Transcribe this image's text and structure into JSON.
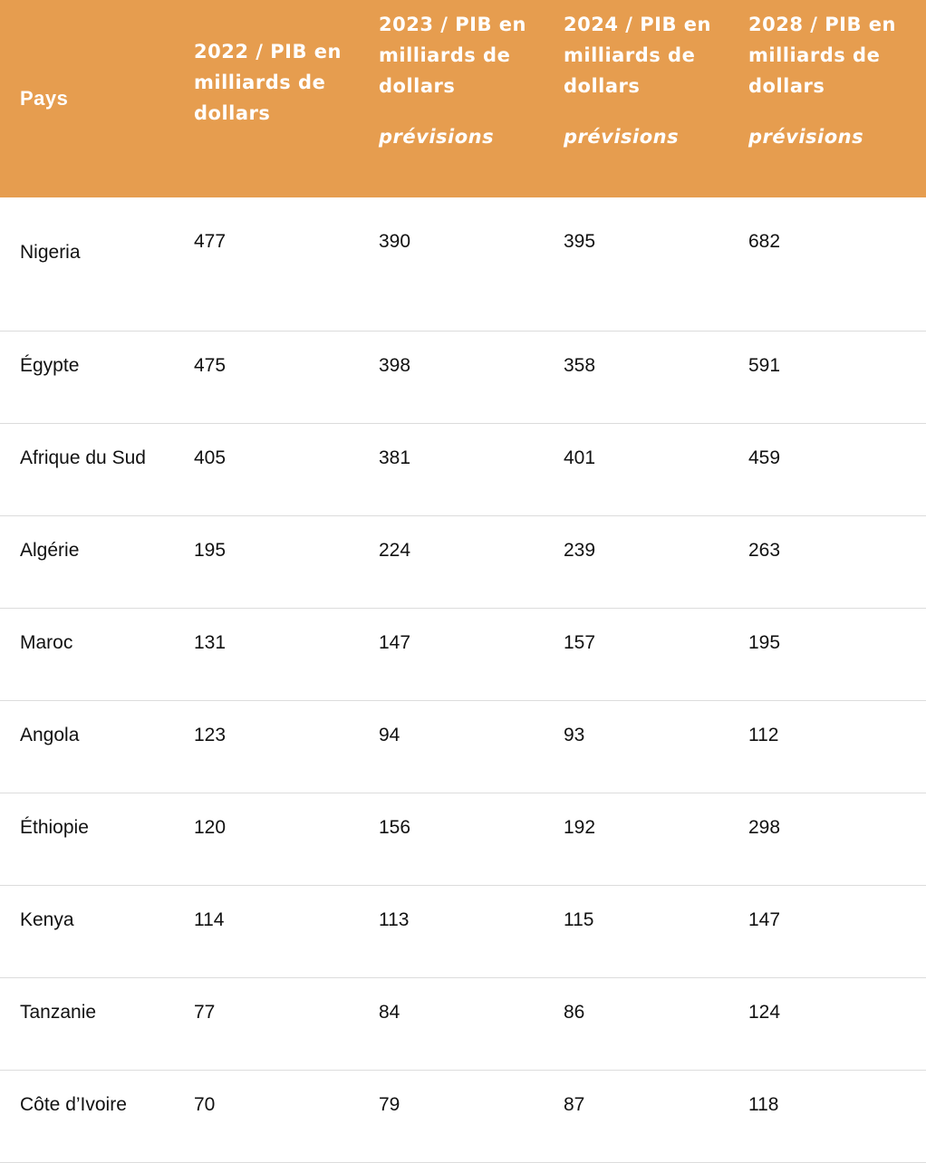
{
  "table": {
    "headers": {
      "country": "Pays",
      "y2022": {
        "line": "2022 / PIB en milliards de dollars"
      },
      "y2023": {
        "line": "2023 / PIB en milliards de dollars",
        "note": "prévisions"
      },
      "y2024": {
        "line": "2024 / PIB en milliards de dollars",
        "note": "prévisions"
      },
      "y2028": {
        "line": "2028 / PIB en milliards de dollars",
        "note": "prévisions"
      }
    },
    "rows": [
      {
        "country": "Nigeria",
        "v2022": "477",
        "v2023": "390",
        "v2024": "395",
        "v2028": "682"
      },
      {
        "country": "Égypte",
        "v2022": "475",
        "v2023": "398",
        "v2024": "358",
        "v2028": "591"
      },
      {
        "country": "Afrique du Sud",
        "v2022": "405",
        "v2023": "381",
        "v2024": "401",
        "v2028": "459"
      },
      {
        "country": "Algérie",
        "v2022": "195",
        "v2023": "224",
        "v2024": "239",
        "v2028": "263"
      },
      {
        "country": "Maroc",
        "v2022": "131",
        "v2023": "147",
        "v2024": "157",
        "v2028": "195"
      },
      {
        "country": "Angola",
        "v2022": "123",
        "v2023": "94",
        "v2024": "93",
        "v2028": "112"
      },
      {
        "country": "Éthiopie",
        "v2022": "120",
        "v2023": "156",
        "v2024": "192",
        "v2028": "298"
      },
      {
        "country": "Kenya",
        "v2022": "114",
        "v2023": "113",
        "v2024": "115",
        "v2028": "147"
      },
      {
        "country": "Tanzanie",
        "v2022": "77",
        "v2023": "84",
        "v2024": "86",
        "v2028": "124"
      },
      {
        "country": "Côte d’Ivoire",
        "v2022": "70",
        "v2023": "79",
        "v2024": "87",
        "v2028": "118"
      }
    ]
  },
  "colors": {
    "header_bg": "#e69d4f",
    "header_text": "#ffffff",
    "row_border": "#dcdcdc"
  }
}
